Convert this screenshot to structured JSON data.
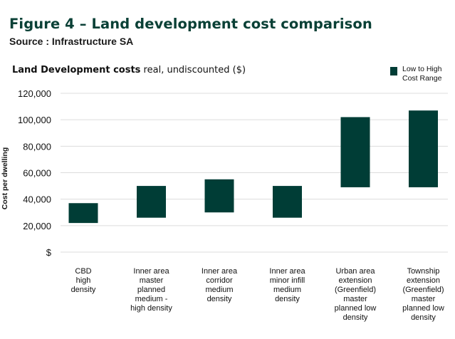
{
  "figure": {
    "title": "Figure 4 – Land development cost comparison",
    "source": "Source : Infrastructure SA"
  },
  "colors": {
    "bar": "#003d36",
    "title": "#0a4036",
    "grid": "#dcdcdc"
  },
  "chart_data": {
    "type": "bar",
    "subtype": "floating-range",
    "title_bold": "Land Development costs",
    "title_rest": " real, undiscounted ($)",
    "xlabel": "",
    "ylabel": "Cost per dwelling",
    "ylim": [
      0,
      120000
    ],
    "yticks": [
      0,
      20000,
      40000,
      60000,
      80000,
      100000,
      120000
    ],
    "ytick_labels": [
      "$",
      "20,000",
      "40,000",
      "60,000",
      "80,000",
      "100,000",
      "120,000"
    ],
    "grid": true,
    "legend_position": "top-right",
    "categories": [
      "CBD\nhigh\ndensity",
      "Inner area\nmaster\nplanned\nmedium -\nhigh density",
      "Inner area\ncorridor\nmedium\ndensity",
      "Inner area\nminor infill\nmedium\ndensity",
      "Urban area\nextension\n(Greenfield)\nmaster\nplanned low\ndensity",
      "Township\nextension\n(Greenfield)\nmaster\nplanned low\ndensity"
    ],
    "series": [
      {
        "name": "Low to High\nCost Range",
        "low": [
          22000,
          26000,
          30000,
          26000,
          49000,
          49000
        ],
        "high": [
          37000,
          50000,
          55000,
          50000,
          102000,
          107000
        ]
      }
    ]
  }
}
